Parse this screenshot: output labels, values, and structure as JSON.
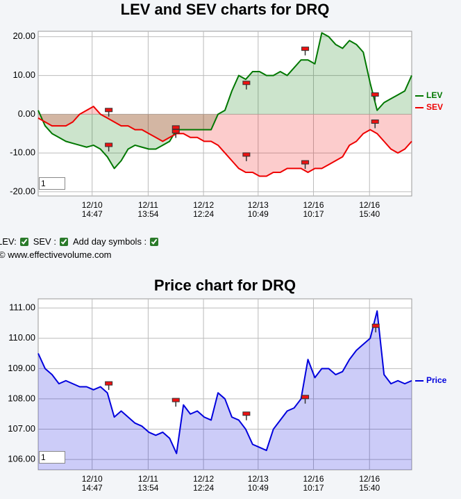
{
  "chart_data": [
    {
      "type": "line",
      "title": "LEV and SEV charts for DRQ",
      "x": [
        0,
        1,
        2,
        3,
        4,
        5,
        6,
        7,
        8,
        9,
        10,
        11,
        12,
        13,
        14,
        15,
        16,
        17,
        18,
        19,
        20,
        21,
        22,
        23,
        24,
        25,
        26,
        27,
        28,
        29,
        30,
        31,
        32,
        33,
        34,
        35,
        36,
        37,
        38,
        39,
        40,
        41,
        42,
        43,
        44,
        45,
        46,
        47,
        48,
        49,
        50,
        51,
        52,
        53,
        54
      ],
      "xlim": [
        0,
        54
      ],
      "xticks": [
        {
          "value": 7.8,
          "label": "12/10\n14:47"
        },
        {
          "value": 15.9,
          "label": "12/11\n13:54"
        },
        {
          "value": 23.9,
          "label": "12/12\n12:24"
        },
        {
          "value": 31.8,
          "label": "12/13\n10:49"
        },
        {
          "value": 39.8,
          "label": "12/16\n10:17"
        },
        {
          "value": 47.9,
          "label": "12/16\n15:40"
        }
      ],
      "ylim": [
        -21.1,
        21.4
      ],
      "yticks": [
        {
          "value": 20,
          "label": "20.00"
        },
        {
          "value": 10,
          "label": "10.00"
        },
        {
          "value": 0,
          "label": "0.00"
        },
        {
          "value": -10,
          "label": "-10.00"
        },
        {
          "value": -20,
          "label": "-20.00"
        }
      ],
      "grid": true,
      "fill": true,
      "legend": "right",
      "series": [
        {
          "name": "LEV",
          "color": "#007700",
          "values": [
            1,
            -3,
            -5,
            -6,
            -7,
            -7.5,
            -8,
            -8.5,
            -8,
            -9,
            -11,
            -14,
            -12,
            -9,
            -8,
            -8.5,
            -9,
            -9,
            -8,
            -7,
            -4,
            -4,
            -4,
            -4,
            -4,
            -4,
            0,
            1,
            6,
            10,
            9,
            11,
            11,
            10,
            10,
            11,
            10,
            12,
            14,
            14,
            13,
            21,
            20,
            18,
            17,
            19,
            18,
            16,
            8,
            1,
            3,
            4,
            5,
            6,
            10
          ]
        },
        {
          "name": "SEV",
          "color": "#ee0000",
          "values": [
            -1,
            -2,
            -3,
            -3,
            -3,
            -2,
            0,
            1,
            2,
            0,
            -1,
            -2,
            -3,
            -3,
            -4,
            -4,
            -5,
            -6,
            -7,
            -6,
            -5,
            -5,
            -6,
            -6,
            -7,
            -7,
            -8,
            -10,
            -12,
            -14,
            -15,
            -15,
            -16,
            -16,
            -15,
            -15,
            -14,
            -14,
            -14,
            -15,
            -14,
            -14,
            -13,
            -12,
            -11,
            -8,
            -7,
            -5,
            -4,
            -5,
            -7,
            -9,
            -10,
            -9,
            -7
          ]
        }
      ],
      "markers": [
        {
          "x": 10.2,
          "y": 1
        },
        {
          "x": 10.2,
          "y": -8
        },
        {
          "x": 19.9,
          "y": -3.5
        },
        {
          "x": 19.9,
          "y": -4.5
        },
        {
          "x": 30.1,
          "y": 8
        },
        {
          "x": 30.1,
          "y": -10.5
        },
        {
          "x": 38.6,
          "y": 16.8
        },
        {
          "x": 38.6,
          "y": -12.5
        },
        {
          "x": 48.7,
          "y": 5
        },
        {
          "x": 48.7,
          "y": -2
        }
      ],
      "input_value": "1"
    },
    {
      "type": "line",
      "title": "Price chart for DRQ",
      "x": [
        0,
        1,
        2,
        3,
        4,
        5,
        6,
        7,
        8,
        9,
        10,
        11,
        12,
        13,
        14,
        15,
        16,
        17,
        18,
        19,
        20,
        21,
        22,
        23,
        24,
        25,
        26,
        27,
        28,
        29,
        30,
        31,
        32,
        33,
        34,
        35,
        36,
        37,
        38,
        39,
        40,
        41,
        42,
        43,
        44,
        45,
        46,
        47,
        48,
        49,
        50,
        51,
        52,
        53,
        54
      ],
      "xlim": [
        0,
        54
      ],
      "xticks": [
        {
          "value": 7.8,
          "label": "12/10\n14:47"
        },
        {
          "value": 15.9,
          "label": "12/11\n13:54"
        },
        {
          "value": 23.9,
          "label": "12/12\n12:24"
        },
        {
          "value": 31.8,
          "label": "12/13\n10:49"
        },
        {
          "value": 39.8,
          "label": "12/16\n10:17"
        },
        {
          "value": 47.9,
          "label": "12/16\n15:40"
        }
      ],
      "ylim": [
        105.66,
        111.3
      ],
      "yticks": [
        {
          "value": 111,
          "label": "111.00"
        },
        {
          "value": 110,
          "label": "110.00"
        },
        {
          "value": 109,
          "label": "109.00"
        },
        {
          "value": 108,
          "label": "108.00"
        },
        {
          "value": 107,
          "label": "107.00"
        },
        {
          "value": 106,
          "label": "106.00"
        }
      ],
      "grid": true,
      "fill": true,
      "legend": "right",
      "series": [
        {
          "name": "Price",
          "color": "#0000dd",
          "values": [
            109.5,
            109.0,
            108.8,
            108.5,
            108.6,
            108.5,
            108.4,
            108.4,
            108.3,
            108.4,
            108.2,
            107.4,
            107.6,
            107.4,
            107.2,
            107.1,
            106.9,
            106.8,
            106.9,
            106.7,
            106.2,
            107.8,
            107.5,
            107.6,
            107.4,
            107.3,
            108.2,
            108.0,
            107.4,
            107.3,
            107.0,
            106.5,
            106.4,
            106.3,
            107.0,
            107.3,
            107.6,
            107.7,
            108.0,
            109.3,
            108.7,
            109.0,
            109.0,
            108.8,
            108.9,
            109.3,
            109.6,
            109.8,
            110.0,
            110.9,
            108.8,
            108.5,
            108.6,
            108.5,
            108.6
          ]
        }
      ],
      "markers": [
        {
          "x": 10.2,
          "y": 108.5
        },
        {
          "x": 19.9,
          "y": 107.95
        },
        {
          "x": 30.1,
          "y": 107.5
        },
        {
          "x": 38.6,
          "y": 108.05
        },
        {
          "x": 48.8,
          "y": 110.4
        }
      ],
      "input_value": "1"
    }
  ],
  "controls": {
    "items": [
      {
        "label": "LEV:",
        "checked": true
      },
      {
        "label": "SEV :",
        "checked": true
      },
      {
        "label": "Add day symbols :",
        "checked": true
      }
    ],
    "credit": "© www.effectivevolume.com"
  }
}
